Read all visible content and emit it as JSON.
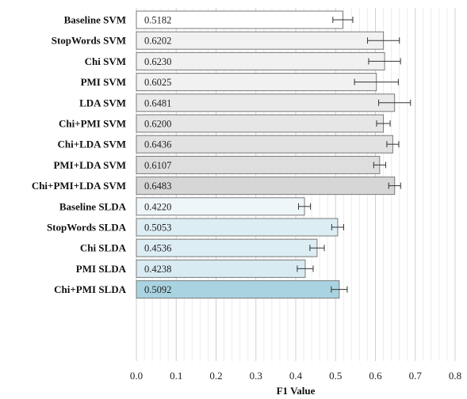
{
  "chart_data": {
    "type": "bar",
    "orientation": "horizontal",
    "xlabel": "F1 Value",
    "xlim": [
      0.0,
      0.8
    ],
    "xticks": [
      "0.0",
      "0.1",
      "0.2",
      "0.3",
      "0.4",
      "0.5",
      "0.6",
      "0.7",
      "0.8"
    ],
    "grid": true,
    "bars": [
      {
        "label": "Baseline SVM",
        "value": 0.5182,
        "value_text": "0.5182",
        "err": 0.025,
        "color": "#ffffff"
      },
      {
        "label": "StopWords SVM",
        "value": 0.6202,
        "value_text": "0.6202",
        "err": 0.04,
        "color": "#f1f1f1"
      },
      {
        "label": "Chi SVM",
        "value": 0.623,
        "value_text": "0.6230",
        "err": 0.04,
        "color": "#f1f1f1"
      },
      {
        "label": "PMI SVM",
        "value": 0.6025,
        "value_text": "0.6025",
        "err": 0.055,
        "color": "#f1f1f1"
      },
      {
        "label": "LDA SVM",
        "value": 0.6481,
        "value_text": "0.6481",
        "err": 0.04,
        "color": "#eaeaea"
      },
      {
        "label": "Chi+PMI SVM",
        "value": 0.62,
        "value_text": "0.6200",
        "err": 0.017,
        "color": "#e6e6e6"
      },
      {
        "label": "Chi+LDA SVM",
        "value": 0.6436,
        "value_text": "0.6436",
        "err": 0.015,
        "color": "#e2e2e2"
      },
      {
        "label": "PMI+LDA SVM",
        "value": 0.6107,
        "value_text": "0.6107",
        "err": 0.015,
        "color": "#dedede"
      },
      {
        "label": "Chi+PMI+LDA SVM",
        "value": 0.6483,
        "value_text": "0.6483",
        "err": 0.015,
        "color": "#d6d6d6"
      },
      {
        "label": "Baseline SLDA",
        "value": 0.422,
        "value_text": "0.4220",
        "err": 0.015,
        "color": "#eef6fa"
      },
      {
        "label": "StopWords SLDA",
        "value": 0.5053,
        "value_text": "0.5053",
        "err": 0.015,
        "color": "#dcedf3"
      },
      {
        "label": "Chi SLDA",
        "value": 0.4536,
        "value_text": "0.4536",
        "err": 0.018,
        "color": "#dcedf3"
      },
      {
        "label": "PMI SLDA",
        "value": 0.4238,
        "value_text": "0.4238",
        "err": 0.02,
        "color": "#d8ebf2"
      },
      {
        "label": "Chi+PMI SLDA",
        "value": 0.5092,
        "value_text": "0.5092",
        "err": 0.02,
        "color": "#a9d3e0"
      }
    ]
  }
}
